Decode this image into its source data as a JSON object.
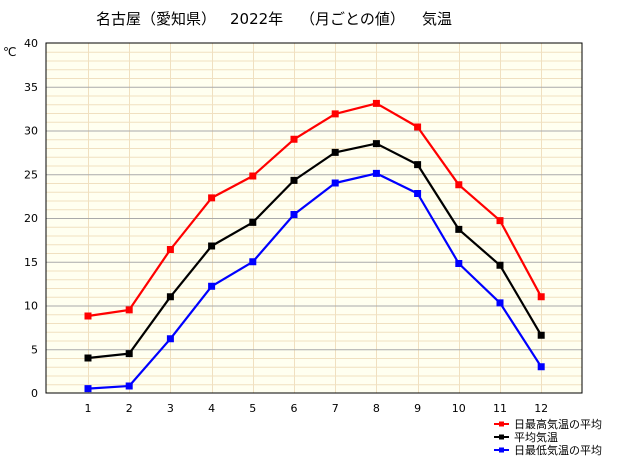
{
  "chart_data": {
    "type": "line",
    "title": "名古屋（愛知県） 2022年 （月ごとの値） 気温",
    "title_parts": [
      "名古屋（愛知県）",
      "2022年",
      "（月ごとの値）",
      "気温"
    ],
    "ylabel": "℃",
    "xlabel": "",
    "categories": [
      "1",
      "2",
      "3",
      "4",
      "5",
      "6",
      "7",
      "8",
      "9",
      "10",
      "11",
      "12"
    ],
    "ylim": [
      0,
      40
    ],
    "yticks": [
      "0",
      "5",
      "10",
      "15",
      "20",
      "25",
      "30",
      "35",
      "40"
    ],
    "grid": true,
    "legend_position": "bottom-right",
    "series": [
      {
        "name": "日最高気温の平均",
        "color": "#ff0000",
        "values": [
          8.8,
          9.5,
          16.4,
          22.3,
          24.8,
          29.0,
          31.9,
          33.1,
          30.4,
          23.8,
          19.7,
          11.0
        ]
      },
      {
        "name": "平均気温",
        "color": "#000000",
        "values": [
          4.0,
          4.5,
          11.0,
          16.8,
          19.5,
          24.3,
          27.5,
          28.5,
          26.1,
          18.7,
          14.6,
          6.6
        ]
      },
      {
        "name": "日最低気温の平均",
        "color": "#0000ff",
        "values": [
          0.5,
          0.8,
          6.2,
          12.2,
          15.0,
          20.4,
          24.0,
          25.1,
          22.8,
          14.8,
          10.3,
          3.0
        ]
      }
    ],
    "colors": {
      "plot_background": "#fffff0",
      "grid_major": "#aaaaaa",
      "grid_minor": "#f0e0c0",
      "frame": "#000000"
    }
  }
}
